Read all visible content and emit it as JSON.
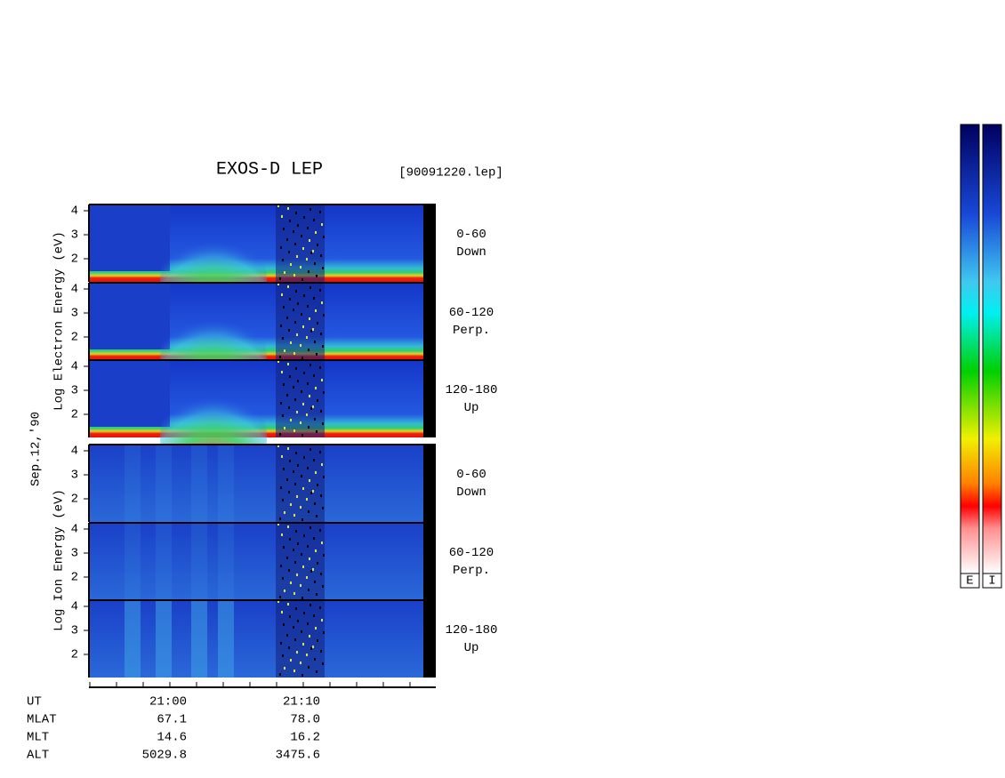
{
  "header": {
    "title": "EXOS-D LEP",
    "file": "[90091220.lep]"
  },
  "date": "Sep.12,'90",
  "electron_label": "Log  Electron  Energy (eV)",
  "ion_label": "Log  Ion  Energy (eV)",
  "yticks": [
    "4",
    "3",
    "2"
  ],
  "panels": [
    {
      "range": "0-60",
      "dir": "Down"
    },
    {
      "range": "60-120",
      "dir": "Perp."
    },
    {
      "range": "120-180",
      "dir": "Up"
    },
    {
      "range": "0-60",
      "dir": "Down"
    },
    {
      "range": "60-120",
      "dir": "Perp."
    },
    {
      "range": "120-180",
      "dir": "Up"
    }
  ],
  "table": {
    "rows": [
      {
        "label": "UT",
        "values": [
          "21:00",
          "21:10"
        ]
      },
      {
        "label": "MLAT",
        "values": [
          "67.1",
          "78.0"
        ]
      },
      {
        "label": "MLT",
        "values": [
          "14.6",
          "16.2"
        ]
      },
      {
        "label": "ALT",
        "values": [
          "5029.8",
          "3475.6"
        ]
      }
    ]
  },
  "colorbars": [
    "E",
    "I"
  ]
}
